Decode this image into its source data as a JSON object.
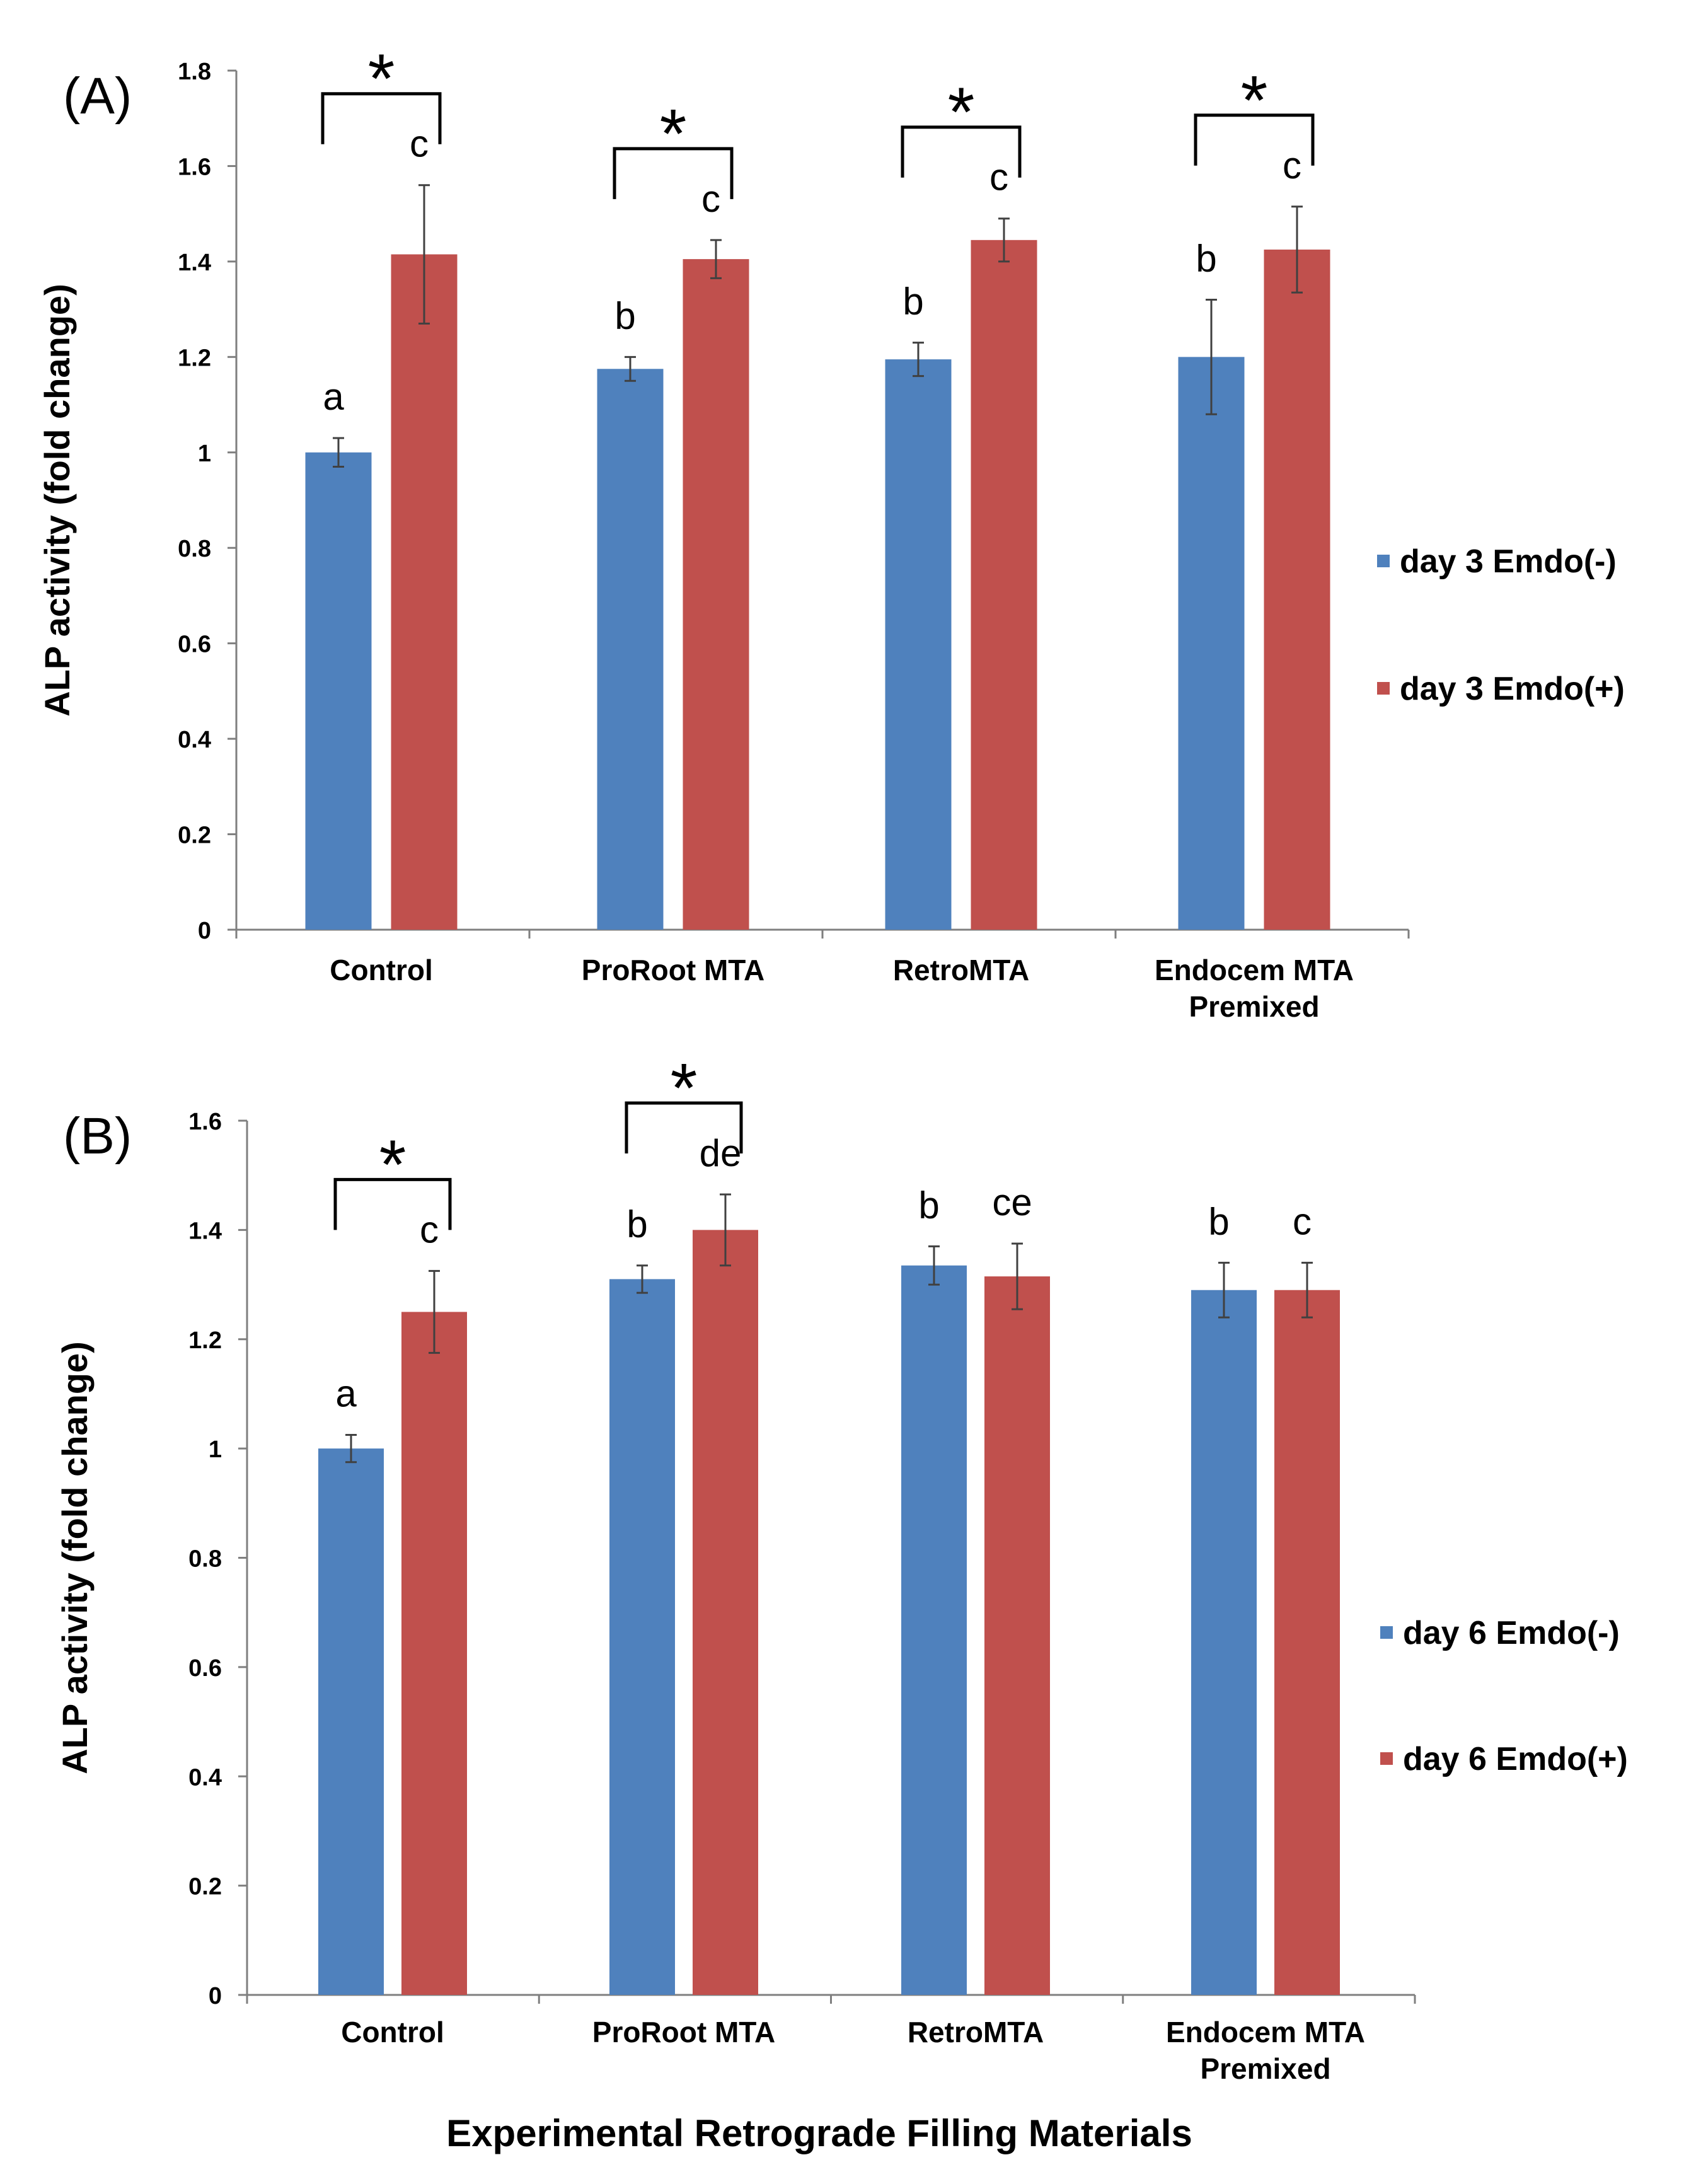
{
  "chart_data": [
    {
      "type": "bar",
      "panel_label": "(A)",
      "ylabel": "ALP activity (fold change)",
      "ylim": [
        0,
        1.8
      ],
      "yticks": [
        "0",
        "0.2",
        "0.4",
        "0.6",
        "0.8",
        "1",
        "1.2",
        "1.4",
        "1.6",
        "1.8"
      ],
      "categories": [
        [
          "Control"
        ],
        [
          "ProRoot MTA"
        ],
        [
          "RetroMTA"
        ],
        [
          "Endocem MTA",
          "Premixed"
        ]
      ],
      "series": [
        {
          "name": "day 3 Emdo(-)",
          "color": "#4f81bd",
          "values": [
            1.0,
            1.175,
            1.195,
            1.2
          ],
          "errors": [
            0.03,
            0.025,
            0.035,
            0.12
          ],
          "letters": [
            "a",
            "b",
            "b",
            "b"
          ]
        },
        {
          "name": "day 3 Emdo(+)",
          "color": "#c0504d",
          "values": [
            1.415,
            1.405,
            1.445,
            1.425
          ],
          "errors": [
            0.145,
            0.04,
            0.045,
            0.09
          ],
          "letters": [
            "c",
            "c",
            "c",
            "c"
          ]
        }
      ],
      "significance": [
        {
          "category_index": 0,
          "marker": "*"
        },
        {
          "category_index": 1,
          "marker": "*"
        },
        {
          "category_index": 2,
          "marker": "*"
        },
        {
          "category_index": 3,
          "marker": "*"
        }
      ]
    },
    {
      "type": "bar",
      "panel_label": "(B)",
      "ylabel": "ALP activity (fold change)",
      "ylim": [
        0,
        1.6
      ],
      "yticks": [
        "0",
        "0.2",
        "0.4",
        "0.6",
        "0.8",
        "1",
        "1.2",
        "1.4",
        "1.6"
      ],
      "categories": [
        [
          "Control"
        ],
        [
          "ProRoot MTA"
        ],
        [
          "RetroMTA"
        ],
        [
          "Endocem MTA",
          "Premixed"
        ]
      ],
      "series": [
        {
          "name": "day 6 Emdo(-)",
          "color": "#4f81bd",
          "values": [
            1.0,
            1.31,
            1.335,
            1.29
          ],
          "errors": [
            0.025,
            0.025,
            0.035,
            0.05
          ],
          "letters": [
            "a",
            "b",
            "b",
            "b"
          ]
        },
        {
          "name": "day 6 Emdo(+)",
          "color": "#c0504d",
          "values": [
            1.25,
            1.4,
            1.315,
            1.29
          ],
          "errors": [
            0.075,
            0.065,
            0.06,
            0.05
          ],
          "letters": [
            "c",
            "de",
            "ce",
            "c"
          ]
        }
      ],
      "significance": [
        {
          "category_index": 0,
          "marker": "*"
        },
        {
          "category_index": 1,
          "marker": "*"
        }
      ]
    }
  ],
  "xlabel": "Experimental Retrograde Filling Materials"
}
